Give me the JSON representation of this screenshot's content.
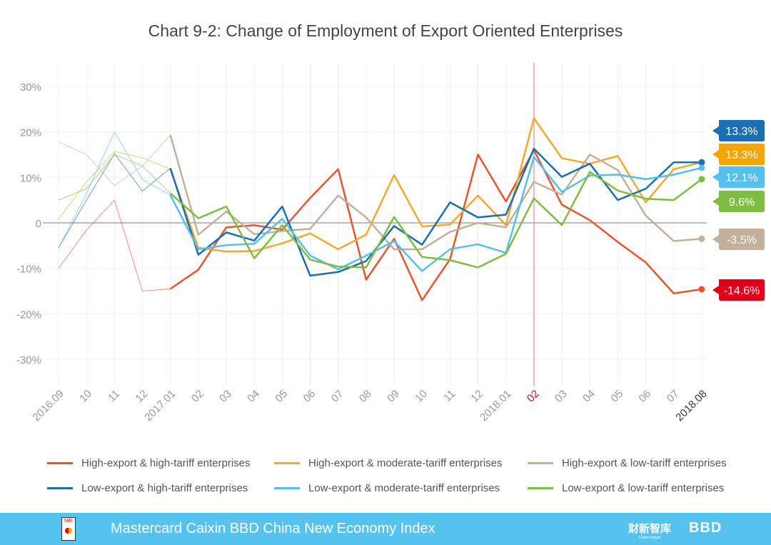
{
  "chart_data": {
    "type": "line",
    "title": "Chart 9-2: Change of Employment of Export Oriented Enterprises",
    "xlabel": "",
    "ylabel": "",
    "ylim": [
      -35,
      35
    ],
    "yticks": [
      30,
      20,
      10,
      0,
      -10,
      -20,
      -30
    ],
    "ytick_labels": [
      "30%",
      "20%",
      "10%",
      "0",
      "-10%",
      "-20%",
      "-30%"
    ],
    "categories": [
      "2016.09",
      "10",
      "11",
      "12",
      "2017.01",
      "02",
      "03",
      "04",
      "05",
      "06",
      "07",
      "08",
      "09",
      "10",
      "11",
      "12",
      "2018.01",
      "02",
      "03",
      "04",
      "05",
      "06",
      "07",
      "2018.08"
    ],
    "highlight_category_index": 17,
    "grid": true,
    "legend_position": "bottom",
    "series": [
      {
        "name": "High-export & high-tariff enterprises",
        "color": "#e8542b",
        "label_color": "#e0001a",
        "end_label": "-14.6%",
        "values": [
          -10,
          -1.6,
          5,
          -15,
          -14.5,
          -10.3,
          -1,
          -0.5,
          -1.5,
          5.5,
          11.8,
          -12.5,
          -3.5,
          -17,
          -8,
          15,
          4.7,
          16,
          4,
          0.6,
          -4.2,
          -8.7,
          -15.5,
          -14.6
        ]
      },
      {
        "name": "High-export & moderate-tariff enterprises",
        "color": "#f5a831",
        "label_color": "#f5a500",
        "end_label": "13.3%",
        "values": [
          0.8,
          9,
          15.7,
          14.3,
          11.8,
          -5.5,
          -6.3,
          -6.2,
          -4.5,
          -2.3,
          -5.8,
          -2.6,
          10.5,
          -0.8,
          -0.4,
          6,
          -0.5,
          23,
          14.2,
          13,
          14.7,
          4.5,
          11.8,
          13.3
        ]
      },
      {
        "name": "High-export & low-tariff enterprises",
        "color": "#c4b09a",
        "label_color": "#c4b09a",
        "end_label": "-3.5%",
        "values": [
          17.8,
          15,
          8.2,
          12.5,
          19.3,
          -2.6,
          2.5,
          -2.5,
          -1.8,
          -1.3,
          6,
          1.2,
          -5.8,
          -5.8,
          -2,
          0,
          -1,
          9,
          6.2,
          15,
          11.6,
          1.6,
          -4,
          -3.5
        ]
      },
      {
        "name": "Low-export & high-tariff enterprises",
        "color": "#1a6fb3",
        "label_color": "#1a6fb3",
        "end_label": "13.3%",
        "values": [
          -5.5,
          5,
          15.2,
          7,
          12,
          -7,
          -2.1,
          -3.9,
          3.6,
          -11.6,
          -10.8,
          -8.4,
          -0.7,
          -4.8,
          4.5,
          1.2,
          1.8,
          16.3,
          10.1,
          13,
          5,
          7.5,
          13.3,
          13.3
        ]
      },
      {
        "name": "Low-export & moderate-tariff enterprises",
        "color": "#56bfee",
        "label_color": "#56bfee",
        "end_label": "12.1%",
        "values": [
          -5.5,
          6.5,
          20,
          9.5,
          6.1,
          -5.8,
          -4.9,
          -4.6,
          0.9,
          -7.2,
          -10.2,
          -7.2,
          -4,
          -10.6,
          -5.8,
          -4.7,
          -6.6,
          14.5,
          6.8,
          10.4,
          10.6,
          9.6,
          10.6,
          12.1
        ]
      },
      {
        "name": "Low-export & low-tariff enterprises",
        "color": "#7dbd42",
        "label_color": "#7dbd42",
        "end_label": "9.6%",
        "values": [
          5,
          7.5,
          15,
          12.5,
          6.5,
          1,
          3.6,
          -7.8,
          -0.5,
          -8.1,
          -9.6,
          -9.8,
          1.3,
          -7.5,
          -8.2,
          -9.8,
          -6.8,
          5.4,
          -0.5,
          11.2,
          7.1,
          5.3,
          5,
          9.6
        ]
      }
    ]
  },
  "footer": {
    "text": "Mastercard Caixin BBD China New Economy Index",
    "logo_nei": "NEI",
    "logo_caixin": "财新智库",
    "logo_caixin_sub": "Caixin Insight",
    "logo_bbd": "BBD",
    "background": "#56c3ef"
  }
}
